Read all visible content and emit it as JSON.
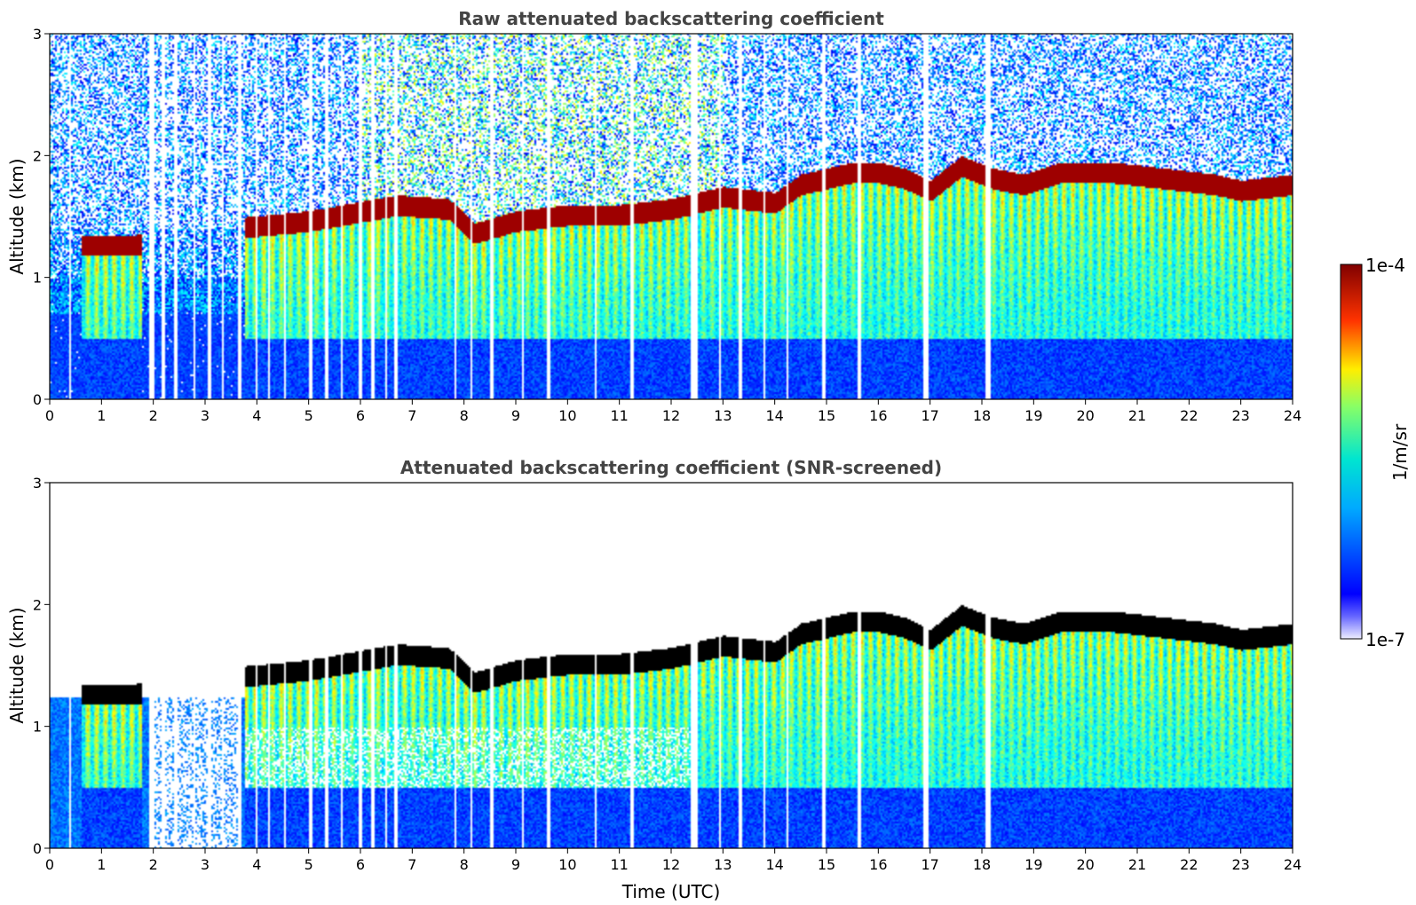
{
  "chart_data": [
    {
      "type": "heatmap",
      "title": "Raw attenuated backscattering coefficient",
      "ylabel": "Altitude (km)",
      "xlabel": "",
      "xlim": [
        0,
        24
      ],
      "ylim": [
        0,
        3
      ],
      "xticks": [
        "0",
        "1",
        "2",
        "3",
        "4",
        "5",
        "6",
        "7",
        "8",
        "9",
        "10",
        "11",
        "12",
        "13",
        "14",
        "15",
        "16",
        "17",
        "18",
        "19",
        "20",
        "21",
        "22",
        "23",
        "24"
      ],
      "yticks": [
        "0",
        "1",
        "2",
        "3"
      ],
      "variant": "raw",
      "data_gaps_hours": [
        [
          0.35,
          0.38
        ],
        [
          1.9,
          2.0
        ],
        [
          2.15,
          2.2
        ],
        [
          2.4,
          2.45
        ],
        [
          2.75,
          2.8
        ],
        [
          3.05,
          3.1
        ],
        [
          3.3,
          3.35
        ],
        [
          3.6,
          3.7
        ],
        [
          3.95,
          4.0
        ],
        [
          4.2,
          4.25
        ],
        [
          4.5,
          4.55
        ],
        [
          5.0,
          5.05
        ],
        [
          5.3,
          5.35
        ],
        [
          5.6,
          5.65
        ],
        [
          5.95,
          6.0
        ],
        [
          6.2,
          6.25
        ],
        [
          6.45,
          6.5
        ],
        [
          6.65,
          6.7
        ],
        [
          7.8,
          7.85
        ],
        [
          8.1,
          8.15
        ],
        [
          8.5,
          8.55
        ],
        [
          9.1,
          9.15
        ],
        [
          9.6,
          9.65
        ],
        [
          10.5,
          10.55
        ],
        [
          11.2,
          11.25
        ],
        [
          12.35,
          12.5
        ],
        [
          12.9,
          12.95
        ],
        [
          13.3,
          13.35
        ],
        [
          13.75,
          13.8
        ],
        [
          14.2,
          14.25
        ],
        [
          14.9,
          14.95
        ],
        [
          15.6,
          15.65
        ],
        [
          16.85,
          16.95
        ],
        [
          18.05,
          18.15
        ]
      ],
      "layer_top_km": [
        [
          0.6,
          1.35
        ],
        [
          1.6,
          1.35
        ],
        [
          3.8,
          1.5
        ],
        [
          5.0,
          1.55
        ],
        [
          6.7,
          1.68
        ],
        [
          7.7,
          1.65
        ],
        [
          8.2,
          1.45
        ],
        [
          9.0,
          1.55
        ],
        [
          10.0,
          1.6
        ],
        [
          11.0,
          1.6
        ],
        [
          12.0,
          1.65
        ],
        [
          13.0,
          1.75
        ],
        [
          14.0,
          1.7
        ],
        [
          14.5,
          1.85
        ],
        [
          15.0,
          1.9
        ],
        [
          15.5,
          1.95
        ],
        [
          16.0,
          1.95
        ],
        [
          16.5,
          1.9
        ],
        [
          17.0,
          1.8
        ],
        [
          17.6,
          2.0
        ],
        [
          18.2,
          1.9
        ],
        [
          18.8,
          1.85
        ],
        [
          19.5,
          1.95
        ],
        [
          20.5,
          1.95
        ],
        [
          21.5,
          1.9
        ],
        [
          22.5,
          1.85
        ],
        [
          23.0,
          1.8
        ],
        [
          24.0,
          1.85
        ]
      ]
    },
    {
      "type": "heatmap",
      "title": "Attenuated backscattering coefficient (SNR-screened)",
      "ylabel": "Altitude (km)",
      "xlabel": "Time (UTC)",
      "xlim": [
        0,
        24
      ],
      "ylim": [
        0,
        3
      ],
      "xticks": [
        "0",
        "1",
        "2",
        "3",
        "4",
        "5",
        "6",
        "7",
        "8",
        "9",
        "10",
        "11",
        "12",
        "13",
        "14",
        "15",
        "16",
        "17",
        "18",
        "19",
        "20",
        "21",
        "22",
        "23",
        "24"
      ],
      "yticks": [
        "0",
        "1",
        "2",
        "3"
      ],
      "variant": "screened"
    }
  ],
  "colorbar": {
    "label": "1/m/sr",
    "max_label": "1e-4",
    "min_label": "1e-7",
    "colormap": "jet",
    "low_color": "#e8e8ff",
    "high_color": "#800000"
  }
}
